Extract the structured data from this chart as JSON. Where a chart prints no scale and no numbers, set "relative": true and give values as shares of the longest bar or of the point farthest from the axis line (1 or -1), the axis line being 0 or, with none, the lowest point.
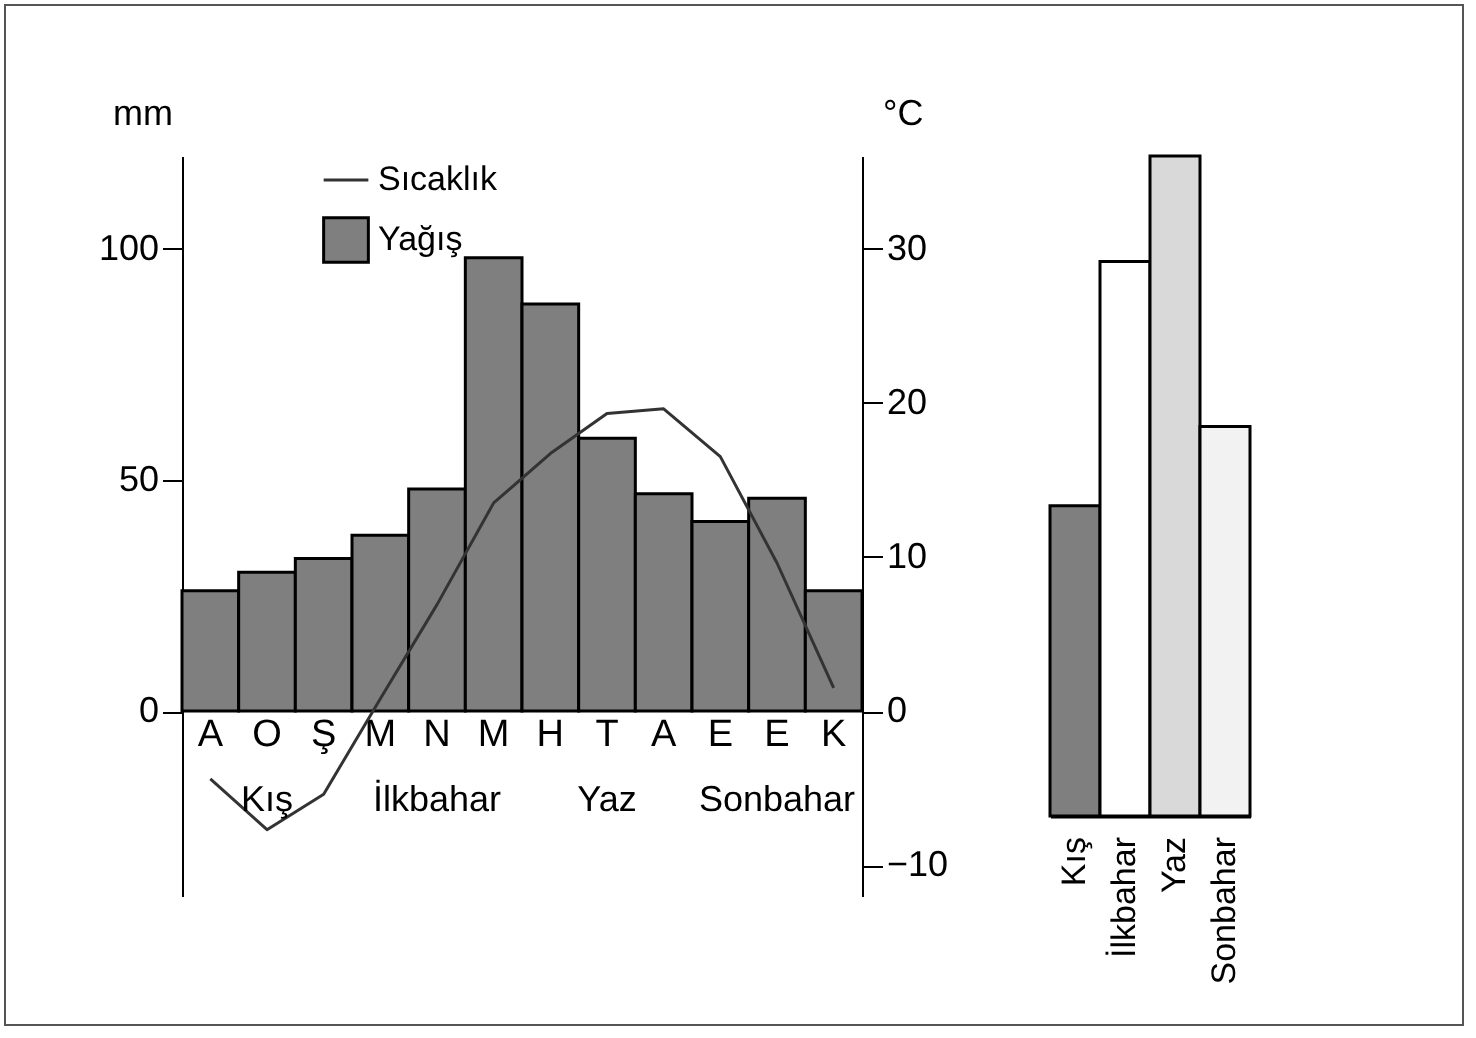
{
  "chart_data": [
    {
      "type": "bar",
      "ylabel": "mm",
      "y2label": "°C",
      "categories": [
        "A",
        "O",
        "Ş",
        "M",
        "N",
        "M",
        "H",
        "T",
        "A",
        "E",
        "E",
        "K"
      ],
      "series": [
        {
          "name": "Yağış",
          "type": "bar",
          "color": "#7f7f7f",
          "values": [
            26,
            30,
            33,
            38,
            48,
            98,
            88,
            59,
            47,
            41,
            46,
            26
          ]
        },
        {
          "name": "Sıcaklık",
          "type": "line",
          "axis": "y2",
          "color": "#333333",
          "values": [
            -4.4,
            -7.7,
            -5.4,
            0.8,
            6.9,
            13.5,
            16.7,
            19.3,
            19.6,
            16.5,
            9.6,
            1.5
          ]
        }
      ],
      "ylim": [
        -40,
        120
      ],
      "yticks": [
        0,
        50,
        100
      ],
      "y2lim": [
        -12,
        36
      ],
      "y2ticks": [
        {
          "value": -10,
          "label": "−10"
        },
        0,
        10,
        20,
        30
      ],
      "annotations": [
        "Kış",
        "İlkbahar",
        "Yaz",
        "Sonbahar"
      ],
      "legend": "top",
      "grid": false
    },
    {
      "type": "bar",
      "relative": true,
      "categories": [
        "Kış",
        "İlkbahar",
        "Yaz",
        "Sonbahar"
      ],
      "values": [
        0.47,
        0.84,
        1,
        0.59
      ],
      "colors": [
        "#7f7f7f",
        "#ffffff",
        "#d9d9d9",
        "#f2f2f2"
      ]
    }
  ]
}
